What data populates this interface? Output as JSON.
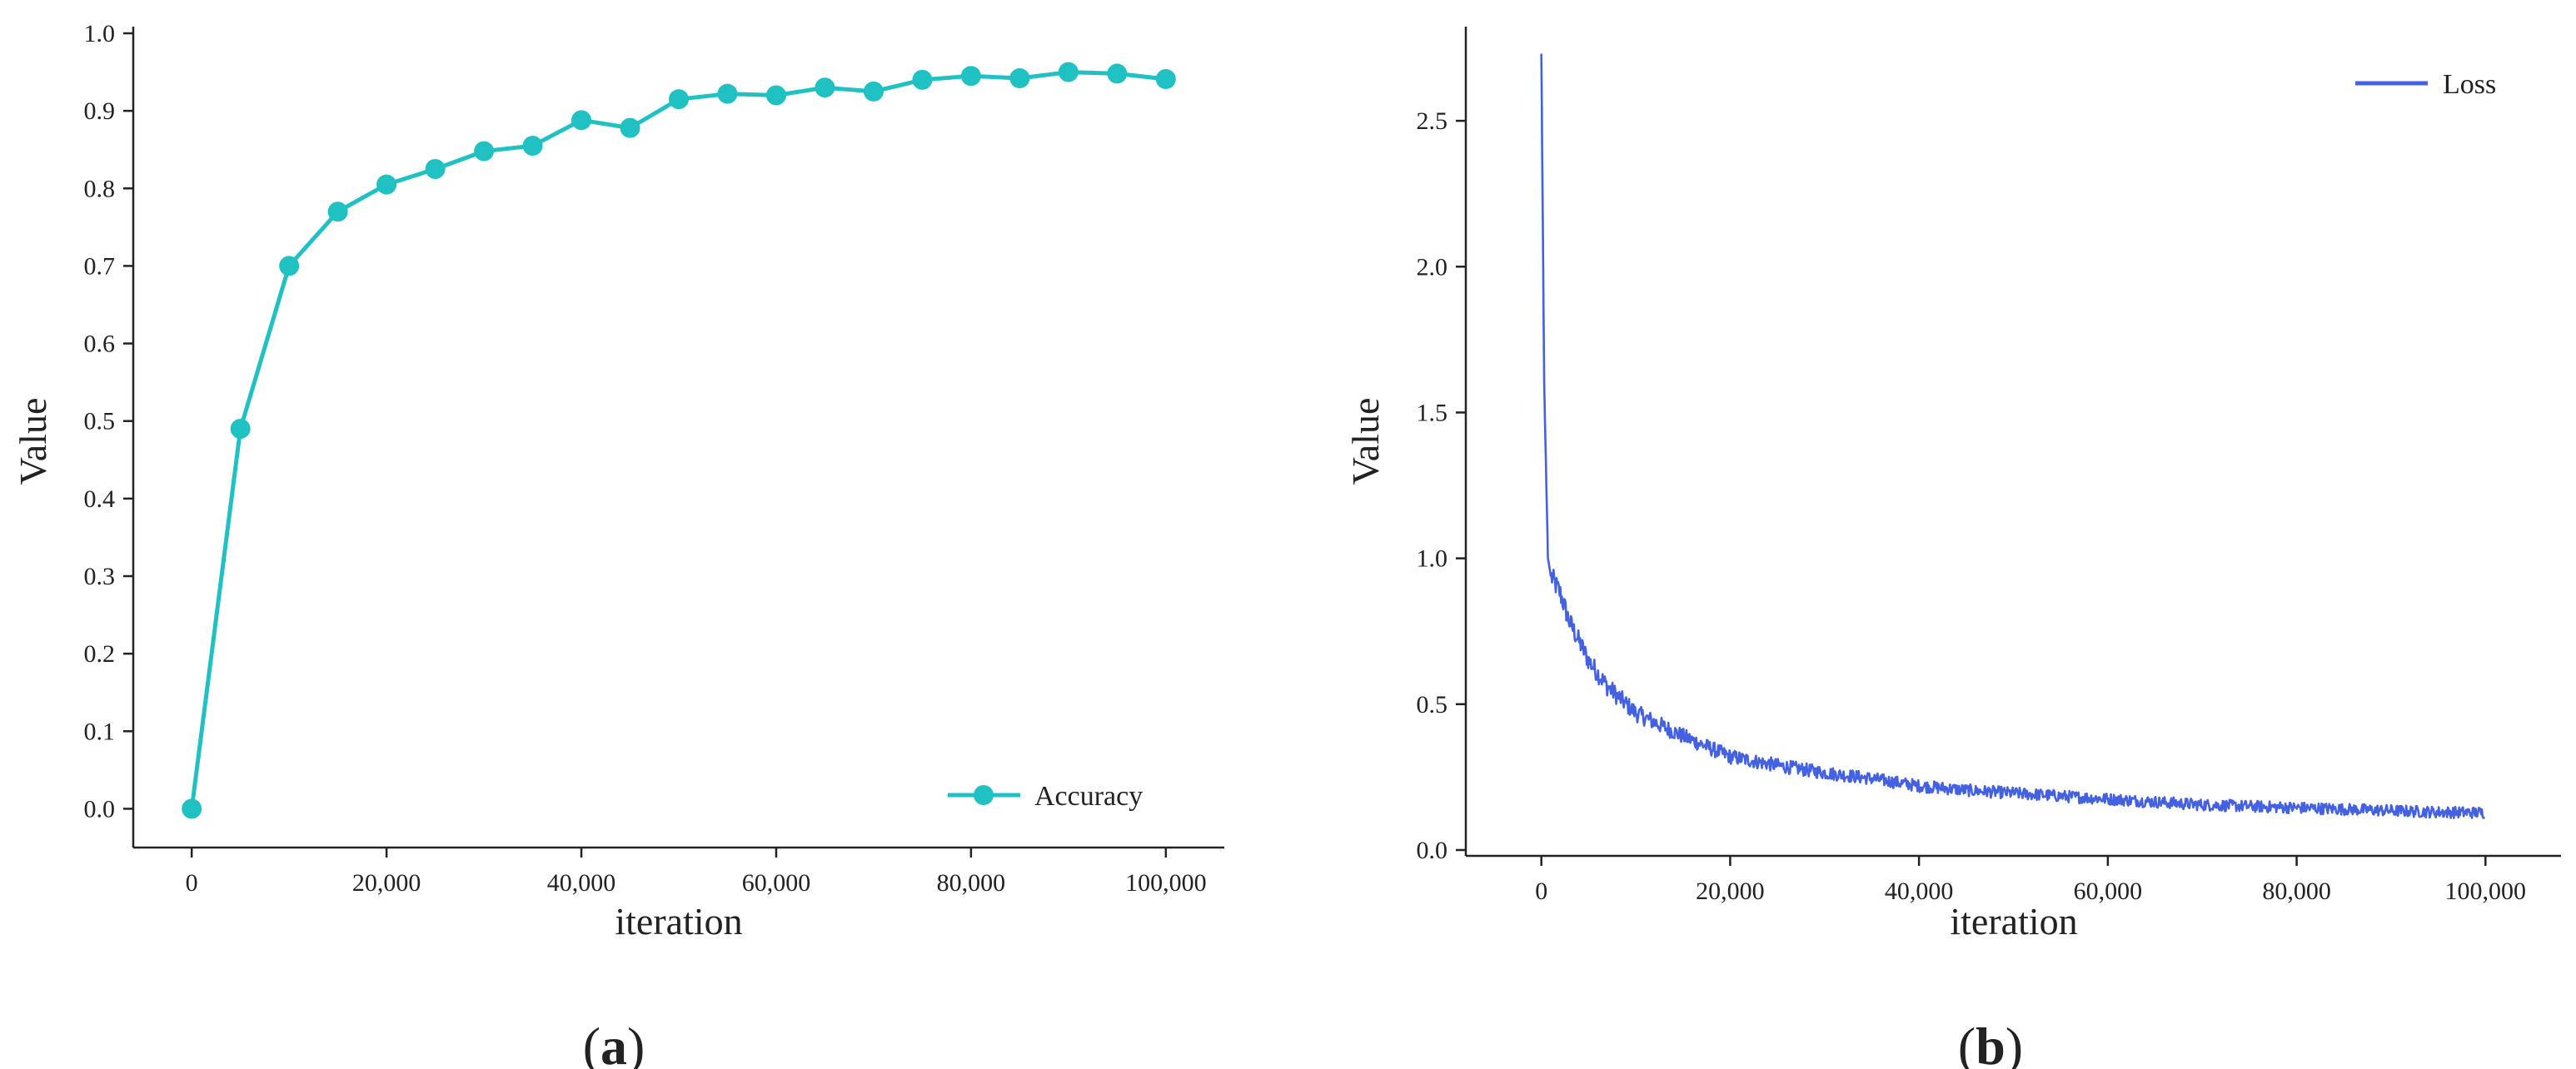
{
  "chart_data": [
    {
      "type": "line",
      "panel_label": "a",
      "xlabel": "iteration",
      "ylabel": "Value",
      "xlim": [
        -6000,
        106000
      ],
      "ylim": [
        -0.05,
        1.0
      ],
      "x_ticks": [
        0,
        20000,
        40000,
        60000,
        80000,
        100000
      ],
      "x_tick_labels": [
        "0",
        "20,000",
        "40,000",
        "60,000",
        "80,000",
        "100,000"
      ],
      "y_ticks": [
        0.0,
        0.1,
        0.2,
        0.3,
        0.4,
        0.5,
        0.6,
        0.7,
        0.8,
        0.9,
        1.0
      ],
      "y_tick_labels": [
        "0.0",
        "0.1",
        "0.2",
        "0.3",
        "0.4",
        "0.5",
        "0.6",
        "0.7",
        "0.8",
        "0.9",
        "1.0"
      ],
      "grid": false,
      "legend_position": "bottom-right",
      "series": [
        {
          "name": "Accuracy",
          "color": "#1fc1c3",
          "marker": "circle",
          "x": [
            0,
            5000,
            10000,
            15000,
            20000,
            25000,
            30000,
            35000,
            40000,
            45000,
            50000,
            55000,
            60000,
            65000,
            70000,
            75000,
            80000,
            85000,
            90000,
            95000,
            100000
          ],
          "y": [
            0.0,
            0.49,
            0.7,
            0.77,
            0.805,
            0.825,
            0.848,
            0.855,
            0.888,
            0.878,
            0.915,
            0.922,
            0.92,
            0.93,
            0.925,
            0.94,
            0.945,
            0.942,
            0.95,
            0.948,
            0.941
          ]
        }
      ]
    },
    {
      "type": "line",
      "panel_label": "b",
      "xlabel": "iteration",
      "ylabel": "Value",
      "xlim": [
        -8000,
        108000
      ],
      "ylim": [
        -0.02,
        2.8
      ],
      "x_ticks": [
        0,
        20000,
        40000,
        60000,
        80000,
        100000
      ],
      "x_tick_labels": [
        "0",
        "20,000",
        "40,000",
        "60,000",
        "80,000",
        "100,000"
      ],
      "y_ticks": [
        0.0,
        0.5,
        1.0,
        1.5,
        2.0,
        2.5
      ],
      "y_tick_labels": [
        "0.0",
        "0.5",
        "1.0",
        "1.5",
        "2.0",
        "2.5"
      ],
      "grid": false,
      "legend_position": "top-right",
      "series": [
        {
          "name": "Loss",
          "color": "#4361e0",
          "noise": "high-frequency jitter of about ±0.03 around the curve",
          "x": [
            0,
            300,
            700,
            1000,
            2000,
            3000,
            5000,
            7000,
            10000,
            15000,
            20000,
            25000,
            30000,
            35000,
            40000,
            45000,
            50000,
            55000,
            60000,
            65000,
            70000,
            75000,
            80000,
            85000,
            90000,
            95000,
            100000
          ],
          "y": [
            2.73,
            1.6,
            1.0,
            0.94,
            0.88,
            0.78,
            0.65,
            0.56,
            0.47,
            0.39,
            0.32,
            0.29,
            0.265,
            0.245,
            0.22,
            0.205,
            0.195,
            0.185,
            0.175,
            0.165,
            0.155,
            0.15,
            0.145,
            0.14,
            0.135,
            0.13,
            0.128
          ]
        }
      ]
    }
  ]
}
